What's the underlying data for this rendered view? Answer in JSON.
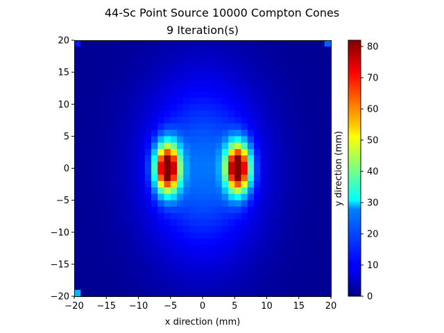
{
  "chart_data": {
    "type": "heatmap",
    "title": "44-Sc Point Source 10000 Compton Cones",
    "subtitle": "9 Iteration(s)",
    "xlabel": "x direction (mm)",
    "ylabel": "y direction (mm)",
    "xlim": [
      -20,
      20
    ],
    "ylim": [
      -20,
      20
    ],
    "x_ticks": [
      -20,
      -15,
      -10,
      -5,
      0,
      5,
      10,
      15,
      20
    ],
    "y_ticks": [
      -20,
      -15,
      -10,
      -5,
      0,
      5,
      10,
      15,
      20
    ],
    "bins": 40,
    "colormap": "jet",
    "colorbar": {
      "min": 0,
      "max": 82,
      "ticks": [
        0,
        10,
        20,
        30,
        40,
        50,
        60,
        70,
        80
      ]
    },
    "features": [
      {
        "label": "left lobe",
        "x": -5.5,
        "y": 0,
        "peak": 82,
        "sx": 1.3,
        "sy": 2.6
      },
      {
        "label": "right lobe",
        "x": 5.5,
        "y": 0,
        "peak": 82,
        "sx": 1.3,
        "sy": 2.6
      },
      {
        "label": "halo",
        "x": 0,
        "y": 0,
        "peak": 18,
        "sx": 6.5,
        "sy": 10
      },
      {
        "label": "corner artifact bottom-left",
        "x": -19.5,
        "y": -19.5,
        "peak": 25
      },
      {
        "label": "corner artifact top-left",
        "x": -19.5,
        "y": 19.5,
        "peak": 12
      },
      {
        "label": "corner artifact top-right",
        "x": 19.5,
        "y": 19.5,
        "peak": 18
      }
    ],
    "background_level": 1.5
  }
}
